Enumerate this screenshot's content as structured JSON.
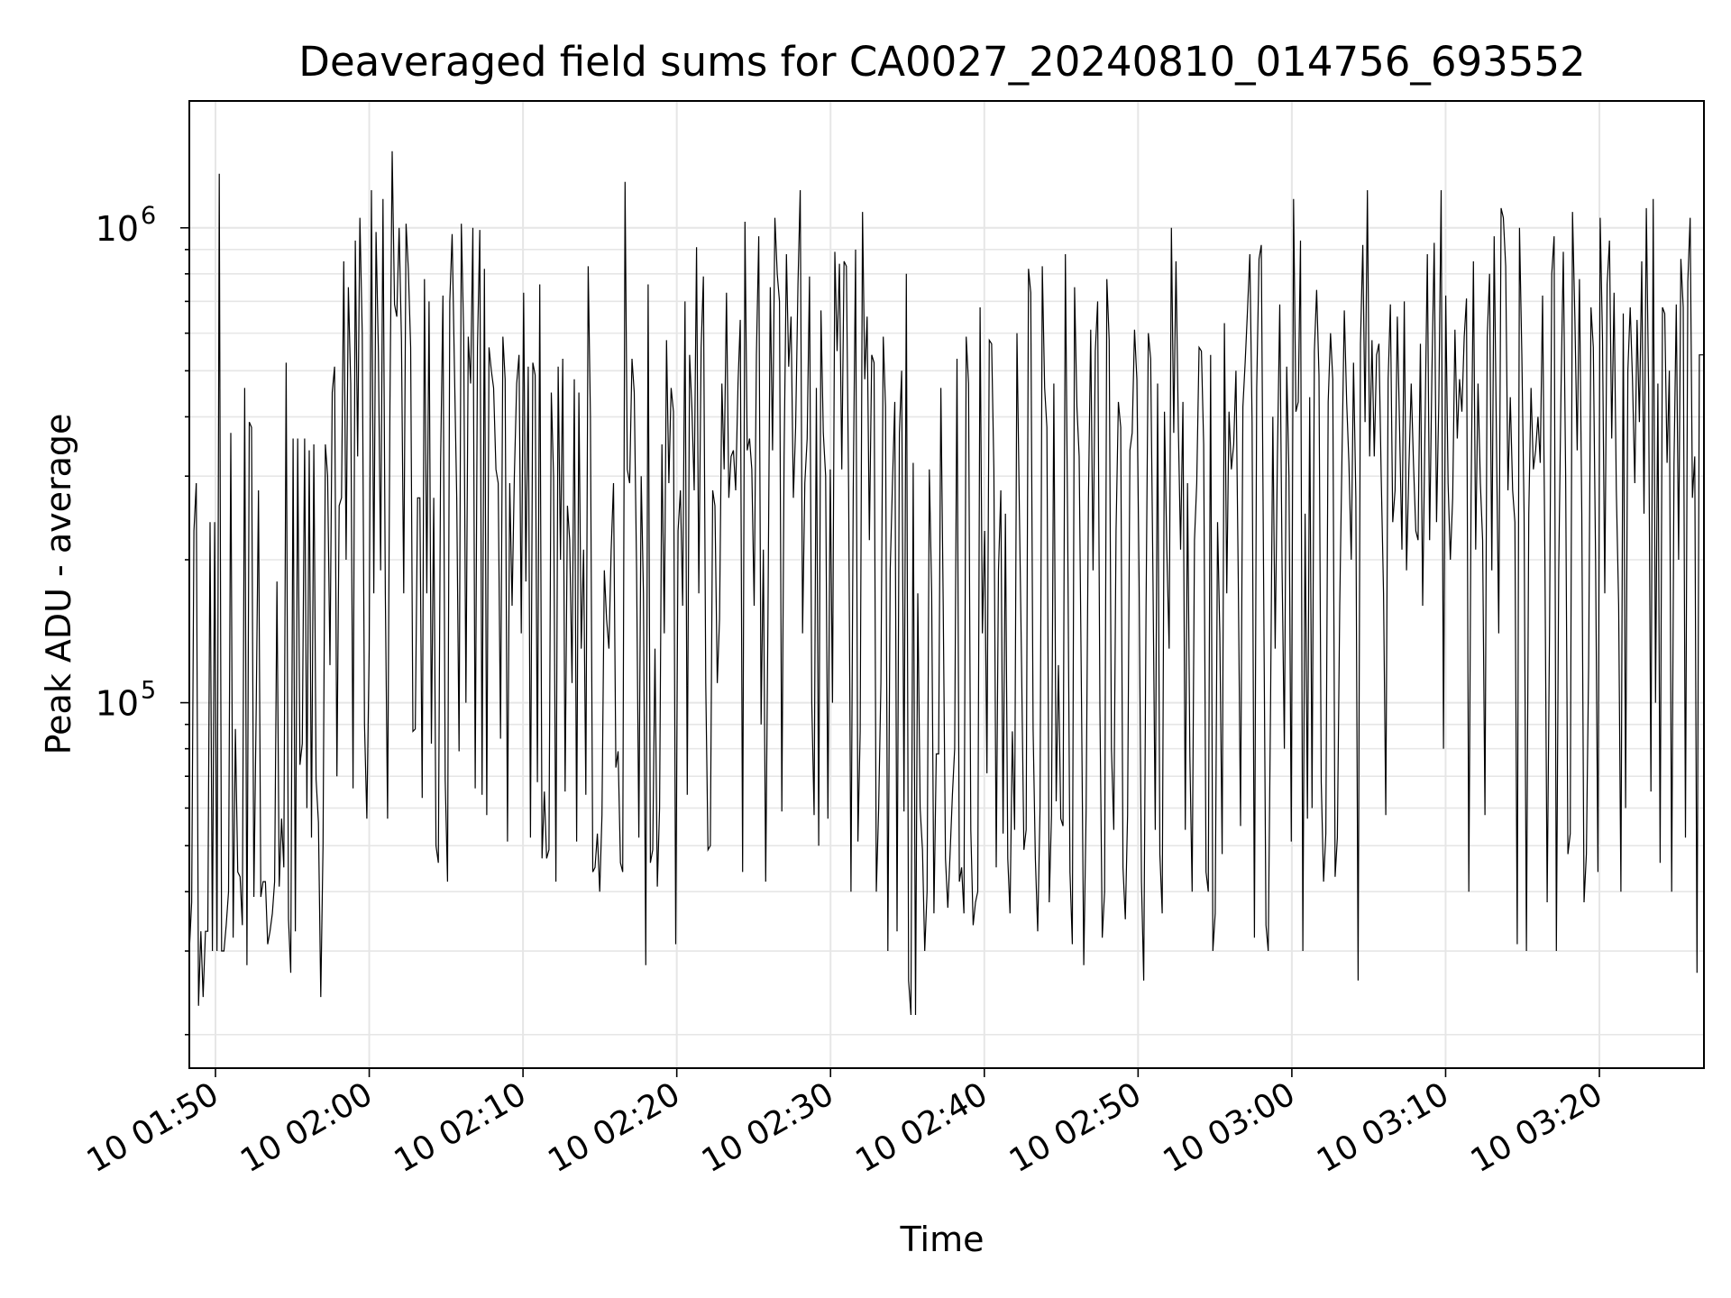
{
  "chart_data": {
    "type": "line",
    "title": "Deaveraged field sums for CA0027_20240810_014756_693552",
    "xlabel": "Time",
    "ylabel": "Peak ADU - average",
    "yscale": "log",
    "ylim": [
      17000,
      1850000
    ],
    "x_range_minutes": [
      108.3,
      206.8
    ],
    "x_tick_minutes": [
      110,
      120,
      130,
      140,
      150,
      160,
      170,
      180,
      190,
      200
    ],
    "x_tick_labels": [
      "10 01:50",
      "10 02:00",
      "10 02:10",
      "10 02:20",
      "10 02:30",
      "10 02:40",
      "10 02:50",
      "10 03:00",
      "10 03:10",
      "10 03:20"
    ],
    "y_ticks": [
      {
        "value": 100000,
        "base": "10",
        "exp": "5"
      },
      {
        "value": 1000000,
        "base": "10",
        "exp": "6"
      }
    ],
    "grid": true,
    "line_color": "#000000",
    "grid_color": "#e6e6e6",
    "series": [
      {
        "x_start_minutes": 108.3,
        "x_end_minutes": 206.8,
        "values": [
          30000,
          38000,
          230000,
          290000,
          23000,
          33000,
          24000,
          33000,
          33000,
          240000,
          30000,
          240000,
          30000,
          1300000,
          30000,
          30000,
          34000,
          40000,
          370000,
          32000,
          88000,
          44000,
          43000,
          34000,
          460000,
          28000,
          390000,
          380000,
          39000,
          98000,
          280000,
          39000,
          42000,
          42000,
          31000,
          33000,
          36000,
          42000,
          180000,
          41000,
          57000,
          45000,
          520000,
          35000,
          27000,
          360000,
          33000,
          360000,
          74000,
          82000,
          360000,
          60000,
          340000,
          52000,
          350000,
          69000,
          56000,
          24000,
          50000,
          350000,
          300000,
          120000,
          450000,
          510000,
          70000,
          260000,
          270000,
          850000,
          200000,
          750000,
          470000,
          66000,
          940000,
          330000,
          1050000,
          600000,
          90000,
          57000,
          130000,
          1200000,
          170000,
          980000,
          550000,
          190000,
          1150000,
          170000,
          57000,
          420000,
          1450000,
          690000,
          650000,
          1000000,
          580000,
          170000,
          1020000,
          820000,
          560000,
          87000,
          88000,
          270000,
          270000,
          63000,
          780000,
          170000,
          700000,
          82000,
          270000,
          50000,
          46000,
          320000,
          720000,
          69000,
          42000,
          700000,
          970000,
          500000,
          270000,
          79000,
          1020000,
          600000,
          100000,
          590000,
          470000,
          1000000,
          66000,
          560000,
          990000,
          64000,
          820000,
          58000,
          560000,
          500000,
          460000,
          310000,
          290000,
          84000,
          590000,
          480000,
          51000,
          290000,
          160000,
          300000,
          470000,
          540000,
          140000,
          730000,
          180000,
          510000,
          52000,
          520000,
          490000,
          68000,
          760000,
          47000,
          65000,
          47000,
          49000,
          450000,
          300000,
          42000,
          510000,
          200000,
          530000,
          65000,
          260000,
          220000,
          110000,
          480000,
          51000,
          450000,
          130000,
          210000,
          64000,
          830000,
          400000,
          44000,
          45000,
          53000,
          40000,
          58000,
          190000,
          150000,
          130000,
          210000,
          290000,
          73000,
          79000,
          46000,
          44000,
          1250000,
          310000,
          290000,
          530000,
          450000,
          190000,
          52000,
          300000,
          170000,
          28000,
          760000,
          46000,
          49000,
          130000,
          41000,
          60000,
          350000,
          140000,
          580000,
          290000,
          460000,
          410000,
          31000,
          230000,
          280000,
          160000,
          700000,
          64000,
          540000,
          420000,
          280000,
          910000,
          170000,
          560000,
          790000,
          110000,
          49000,
          50000,
          280000,
          260000,
          110000,
          150000,
          470000,
          310000,
          730000,
          270000,
          330000,
          340000,
          280000,
          470000,
          640000,
          44000,
          1030000,
          340000,
          360000,
          310000,
          160000,
          540000,
          960000,
          90000,
          210000,
          42000,
          150000,
          750000,
          340000,
          1050000,
          800000,
          700000,
          59000,
          330000,
          880000,
          510000,
          650000,
          270000,
          380000,
          760000,
          1200000,
          140000,
          290000,
          360000,
          790000,
          100000,
          58000,
          460000,
          50000,
          670000,
          370000,
          300000,
          57000,
          310000,
          100000,
          890000,
          550000,
          840000,
          310000,
          850000,
          830000,
          280000,
          40000,
          280000,
          900000,
          51000,
          87000,
          1080000,
          480000,
          650000,
          220000,
          540000,
          520000,
          40000,
          60000,
          110000,
          590000,
          420000,
          30000,
          190000,
          290000,
          430000,
          33000,
          370000,
          500000,
          59000,
          800000,
          26000,
          22000,
          320000,
          22000,
          170000,
          60000,
          49000,
          30000,
          40000,
          310000,
          170000,
          36000,
          78000,
          78000,
          460000,
          160000,
          47000,
          37000,
          48000,
          64000,
          80000,
          530000,
          42000,
          45000,
          36000,
          590000,
          470000,
          54000,
          34000,
          38000,
          40000,
          680000,
          140000,
          230000,
          71000,
          580000,
          570000,
          310000,
          45000,
          190000,
          280000,
          53000,
          250000,
          47000,
          36000,
          87000,
          54000,
          600000,
          270000,
          120000,
          49000,
          54000,
          820000,
          730000,
          88000,
          47000,
          33000,
          60000,
          830000,
          460000,
          380000,
          38000,
          58000,
          470000,
          62000,
          120000,
          57000,
          55000,
          880000,
          240000,
          44000,
          31000,
          750000,
          420000,
          330000,
          100000,
          28000,
          59000,
          270000,
          610000,
          190000,
          550000,
          700000,
          98000,
          32000,
          40000,
          780000,
          580000,
          80000,
          54000,
          230000,
          430000,
          380000,
          45000,
          35000,
          58000,
          340000,
          370000,
          610000,
          480000,
          180000,
          42000,
          26000,
          160000,
          600000,
          530000,
          180000,
          54000,
          470000,
          48000,
          36000,
          410000,
          210000,
          130000,
          1000000,
          370000,
          850000,
          380000,
          210000,
          430000,
          54000,
          290000,
          77000,
          40000,
          220000,
          290000,
          560000,
          550000,
          350000,
          44000,
          40000,
          540000,
          30000,
          36000,
          240000,
          140000,
          48000,
          630000,
          170000,
          410000,
          310000,
          350000,
          500000,
          180000,
          55000,
          420000,
          520000,
          670000,
          880000,
          390000,
          32000,
          460000,
          860000,
          920000,
          180000,
          34000,
          30000,
          100000,
          400000,
          130000,
          330000,
          690000,
          190000,
          80000,
          510000,
          300000,
          51000,
          1150000,
          410000,
          430000,
          940000,
          30000,
          250000,
          57000,
          440000,
          60000,
          550000,
          740000,
          490000,
          68000,
          42000,
          53000,
          430000,
          600000,
          480000,
          43000,
          52000,
          160000,
          330000,
          670000,
          430000,
          320000,
          200000,
          520000,
          270000,
          26000,
          570000,
          920000,
          390000,
          1200000,
          330000,
          580000,
          330000,
          540000,
          570000,
          300000,
          170000,
          58000,
          480000,
          690000,
          240000,
          280000,
          650000,
          370000,
          210000,
          700000,
          190000,
          310000,
          470000,
          320000,
          230000,
          220000,
          570000,
          160000,
          380000,
          880000,
          220000,
          500000,
          930000,
          240000,
          430000,
          1200000,
          80000,
          720000,
          290000,
          200000,
          270000,
          610000,
          360000,
          480000,
          410000,
          590000,
          710000,
          40000,
          270000,
          850000,
          210000,
          470000,
          290000,
          220000,
          58000,
          590000,
          800000,
          190000,
          960000,
          350000,
          140000,
          1100000,
          1050000,
          830000,
          280000,
          440000,
          280000,
          240000,
          31000,
          1000000,
          540000,
          250000,
          30000,
          250000,
          460000,
          310000,
          340000,
          400000,
          320000,
          720000,
          200000,
          38000,
          140000,
          800000,
          960000,
          30000,
          190000,
          460000,
          890000,
          300000,
          48000,
          53000,
          1080000,
          650000,
          340000,
          780000,
          250000,
          38000,
          48000,
          120000,
          680000,
          560000,
          200000,
          44000,
          1050000,
          580000,
          170000,
          760000,
          940000,
          360000,
          730000,
          280000,
          160000,
          40000,
          660000,
          60000,
          500000,
          680000,
          480000,
          290000,
          640000,
          390000,
          850000,
          250000,
          1100000,
          460000,
          65000,
          1150000,
          100000,
          470000,
          46000,
          680000,
          660000,
          320000,
          500000,
          40000,
          320000,
          690000,
          200000,
          860000,
          680000,
          52000,
          770000,
          1050000,
          270000,
          330000,
          27000,
          540000,
          540000,
          540000
        ]
      }
    ]
  }
}
